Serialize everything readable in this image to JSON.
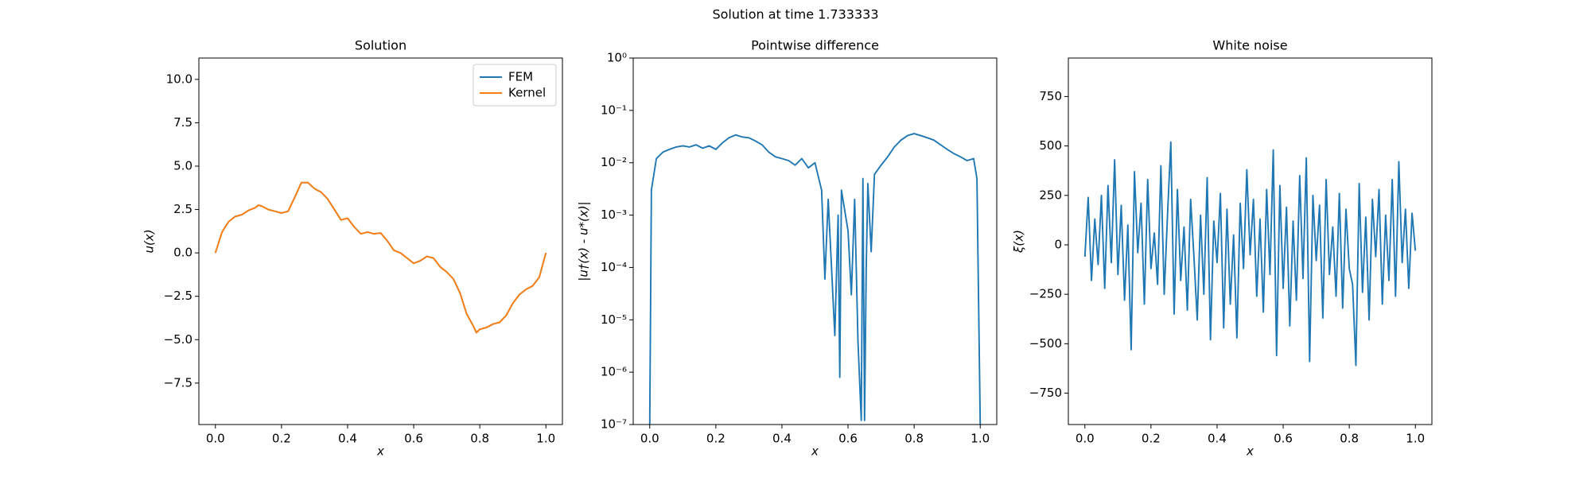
{
  "title": "Solution at time 1.733333",
  "chart_data": [
    {
      "type": "line",
      "title": "Solution",
      "x_label": "x",
      "y_label": "u(x)",
      "xlim": [
        -0.05,
        1.05
      ],
      "xticks": [
        {
          "value": 0,
          "label": "0.0"
        },
        {
          "value": 0.2,
          "label": "0.2"
        },
        {
          "value": 0.4,
          "label": "0.4"
        },
        {
          "value": 0.6,
          "label": "0.6"
        },
        {
          "value": 0.8,
          "label": "0.8"
        },
        {
          "value": 1,
          "label": "1.0"
        }
      ],
      "ylim": [
        -9.89,
        11.23
      ],
      "yticks": [
        {
          "value": -7.5,
          "label": "−7.5"
        },
        {
          "value": -5,
          "label": "−5.0"
        },
        {
          "value": -2.5,
          "label": "−2.5"
        },
        {
          "value": 0,
          "label": "0.0"
        },
        {
          "value": 2.5,
          "label": "2.5"
        },
        {
          "value": 5,
          "label": "5.0"
        },
        {
          "value": 7.5,
          "label": "7.5"
        },
        {
          "value": 10,
          "label": "10.0"
        }
      ],
      "legend": "upper right",
      "x": [
        0,
        0.02,
        0.04,
        0.06,
        0.08,
        0.1,
        0.12,
        0.13,
        0.14,
        0.16,
        0.18,
        0.2,
        0.22,
        0.24,
        0.26,
        0.28,
        0.3,
        0.32,
        0.34,
        0.36,
        0.38,
        0.4,
        0.42,
        0.44,
        0.46,
        0.48,
        0.5,
        0.52,
        0.54,
        0.56,
        0.58,
        0.6,
        0.62,
        0.64,
        0.66,
        0.68,
        0.7,
        0.72,
        0.74,
        0.76,
        0.78,
        0.79,
        0.8,
        0.82,
        0.84,
        0.86,
        0.88,
        0.9,
        0.92,
        0.94,
        0.96,
        0.98,
        1.0
      ],
      "series": [
        {
          "name": "FEM",
          "color": "#1f77b4",
          "values": [
            0,
            1.2,
            1.8,
            2.1,
            2.2,
            2.45,
            2.6,
            2.75,
            2.7,
            2.5,
            2.4,
            2.3,
            2.4,
            3.2,
            4.05,
            4.05,
            3.7,
            3.5,
            3.1,
            2.5,
            1.9,
            2.0,
            1.5,
            1.1,
            1.2,
            1.1,
            1.15,
            0.7,
            0.15,
            0.0,
            -0.3,
            -0.6,
            -0.45,
            -0.2,
            -0.3,
            -0.8,
            -1.1,
            -1.5,
            -2.3,
            -3.5,
            -4.2,
            -4.6,
            -4.4,
            -4.3,
            -4.1,
            -4.0,
            -3.6,
            -2.9,
            -2.4,
            -2.1,
            -1.9,
            -1.4,
            0.0
          ]
        },
        {
          "name": "Kernel",
          "color": "#ff7f0e",
          "values": [
            0,
            1.2,
            1.8,
            2.1,
            2.2,
            2.45,
            2.6,
            2.75,
            2.7,
            2.5,
            2.4,
            2.3,
            2.4,
            3.2,
            4.05,
            4.05,
            3.7,
            3.5,
            3.1,
            2.5,
            1.9,
            2.0,
            1.5,
            1.1,
            1.2,
            1.1,
            1.15,
            0.7,
            0.15,
            0.0,
            -0.3,
            -0.6,
            -0.45,
            -0.2,
            -0.3,
            -0.8,
            -1.1,
            -1.5,
            -2.3,
            -3.5,
            -4.2,
            -4.6,
            -4.4,
            -4.3,
            -4.1,
            -4.0,
            -3.6,
            -2.9,
            -2.4,
            -2.1,
            -1.9,
            -1.4,
            0.0
          ]
        }
      ]
    },
    {
      "type": "line",
      "title": "Pointwise difference",
      "x_label": "x",
      "y_label": "|u†(x) - u*(x)|",
      "log_y": true,
      "xlim": [
        -0.05,
        1.05
      ],
      "xticks": [
        {
          "value": 0,
          "label": "0.0"
        },
        {
          "value": 0.2,
          "label": "0.2"
        },
        {
          "value": 0.4,
          "label": "0.4"
        },
        {
          "value": 0.6,
          "label": "0.6"
        },
        {
          "value": 0.8,
          "label": "0.8"
        },
        {
          "value": 1,
          "label": "1.0"
        }
      ],
      "ylim": [
        1e-07,
        1
      ],
      "yticks": [
        {
          "value": 1e-07,
          "label": "10⁻⁷"
        },
        {
          "value": 1e-06,
          "label": "10⁻⁶"
        },
        {
          "value": 1e-05,
          "label": "10⁻⁵"
        },
        {
          "value": 0.0001,
          "label": "10⁻⁴"
        },
        {
          "value": 0.001,
          "label": "10⁻³"
        },
        {
          "value": 0.01,
          "label": "10⁻²"
        },
        {
          "value": 0.1,
          "label": "10⁻¹"
        },
        {
          "value": 1,
          "label": "10⁰"
        }
      ],
      "color": "#1f77b4",
      "x": [
        0,
        0.005,
        0.02,
        0.04,
        0.06,
        0.08,
        0.1,
        0.12,
        0.14,
        0.16,
        0.18,
        0.2,
        0.22,
        0.24,
        0.26,
        0.28,
        0.3,
        0.32,
        0.34,
        0.36,
        0.38,
        0.4,
        0.42,
        0.44,
        0.46,
        0.48,
        0.5,
        0.52,
        0.53,
        0.54,
        0.55,
        0.56,
        0.57,
        0.575,
        0.58,
        0.6,
        0.61,
        0.62,
        0.63,
        0.64,
        0.645,
        0.65,
        0.655,
        0.66,
        0.67,
        0.68,
        0.7,
        0.72,
        0.74,
        0.76,
        0.78,
        0.8,
        0.82,
        0.84,
        0.86,
        0.88,
        0.9,
        0.92,
        0.94,
        0.96,
        0.98,
        0.99,
        1.0
      ],
      "values": [
        1e-07,
        0.003,
        0.012,
        0.016,
        0.018,
        0.02,
        0.021,
        0.02,
        0.022,
        0.019,
        0.021,
        0.018,
        0.024,
        0.03,
        0.034,
        0.031,
        0.03,
        0.026,
        0.022,
        0.016,
        0.013,
        0.012,
        0.011,
        0.009,
        0.012,
        0.008,
        0.01,
        0.003,
        6e-05,
        0.002,
        0.0001,
        5e-06,
        0.001,
        8e-07,
        0.003,
        0.0005,
        3e-05,
        0.002,
        4e-06,
        1.2e-07,
        0.005,
        1.2e-07,
        0.0001,
        0.004,
        0.0002,
        0.006,
        0.009,
        0.013,
        0.02,
        0.027,
        0.033,
        0.036,
        0.033,
        0.03,
        0.027,
        0.022,
        0.018,
        0.015,
        0.013,
        0.011,
        0.012,
        0.005,
        1e-07
      ]
    },
    {
      "type": "line",
      "title": "White noise",
      "x_label": "x",
      "y_label": "ξ(x)",
      "xlim": [
        -0.05,
        1.05
      ],
      "xticks": [
        {
          "value": 0,
          "label": "0.0"
        },
        {
          "value": 0.2,
          "label": "0.2"
        },
        {
          "value": 0.4,
          "label": "0.4"
        },
        {
          "value": 0.6,
          "label": "0.6"
        },
        {
          "value": 0.8,
          "label": "0.8"
        },
        {
          "value": 1,
          "label": "1.0"
        }
      ],
      "ylim": [
        -908.7,
        944.6
      ],
      "yticks": [
        {
          "value": -750,
          "label": "−750"
        },
        {
          "value": -500,
          "label": "−500"
        },
        {
          "value": -250,
          "label": "−250"
        },
        0,
        250,
        500,
        750
      ],
      "color": "#1f77b4",
      "x": [
        0,
        0.01,
        0.02,
        0.03,
        0.04,
        0.05,
        0.06,
        0.07,
        0.08,
        0.09,
        0.1,
        0.11,
        0.12,
        0.13,
        0.14,
        0.15,
        0.16,
        0.17,
        0.18,
        0.19,
        0.2,
        0.21,
        0.22,
        0.23,
        0.24,
        0.25,
        0.26,
        0.27,
        0.28,
        0.29,
        0.3,
        0.31,
        0.32,
        0.33,
        0.34,
        0.35,
        0.36,
        0.37,
        0.38,
        0.39,
        0.4,
        0.41,
        0.42,
        0.43,
        0.44,
        0.45,
        0.46,
        0.47,
        0.48,
        0.49,
        0.5,
        0.51,
        0.52,
        0.53,
        0.54,
        0.55,
        0.56,
        0.57,
        0.58,
        0.59,
        0.6,
        0.61,
        0.62,
        0.63,
        0.64,
        0.65,
        0.66,
        0.67,
        0.68,
        0.69,
        0.7,
        0.71,
        0.72,
        0.73,
        0.74,
        0.75,
        0.76,
        0.77,
        0.78,
        0.79,
        0.8,
        0.81,
        0.82,
        0.83,
        0.84,
        0.85,
        0.86,
        0.87,
        0.88,
        0.89,
        0.9,
        0.91,
        0.92,
        0.93,
        0.94,
        0.95,
        0.96,
        0.97,
        0.98,
        0.99,
        1.0
      ],
      "values": [
        -60,
        240,
        -180,
        130,
        -100,
        250,
        -220,
        300,
        -90,
        430,
        -150,
        200,
        -280,
        100,
        -530,
        370,
        -40,
        210,
        -300,
        330,
        -120,
        60,
        -200,
        400,
        -250,
        150,
        520,
        -350,
        280,
        -180,
        90,
        -330,
        230,
        -60,
        -380,
        150,
        -250,
        340,
        -480,
        120,
        -90,
        260,
        -420,
        180,
        -300,
        50,
        -470,
        210,
        -120,
        380,
        -50,
        230,
        -260,
        130,
        -340,
        280,
        -150,
        480,
        -560,
        300,
        -220,
        190,
        -410,
        120,
        -280,
        350,
        -170,
        440,
        -590,
        250,
        -80,
        200,
        -370,
        330,
        -150,
        90,
        -260,
        260,
        -320,
        180,
        -120,
        -200,
        -610,
        310,
        -240,
        140,
        -380,
        230,
        -60,
        280,
        -300,
        150,
        -180,
        330,
        -260,
        420,
        -90,
        180,
        -220,
        160,
        -30
      ]
    }
  ]
}
